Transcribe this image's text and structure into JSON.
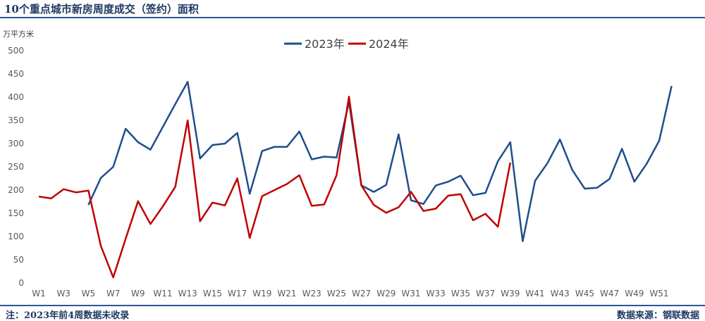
{
  "title": "10个重点城市新房周度成交（签约）面积",
  "footer": {
    "note": "注：2023年前4周数据未收录",
    "source": "数据来源：钢联数据"
  },
  "colors": {
    "series_2023": "#1f4e8c",
    "series_2024": "#c00000",
    "rule": "#2f5597"
  },
  "chart_data": {
    "type": "line",
    "title": "10个重点城市新房周度成交（签约）面积",
    "ylabel": "万平方米",
    "xlabel": "",
    "ylim": [
      0,
      500
    ],
    "yticks": [
      0,
      50,
      100,
      150,
      200,
      250,
      300,
      350,
      400,
      450,
      500
    ],
    "grid": false,
    "legend_position": "top-center",
    "x_tick_labels": [
      "W1",
      "W3",
      "W5",
      "W7",
      "W9",
      "W11",
      "W13",
      "W15",
      "W17",
      "W19",
      "W21",
      "W23",
      "W25",
      "W27",
      "W29",
      "W31",
      "W33",
      "W35",
      "W37",
      "W39",
      "W41",
      "W43",
      "W45",
      "W47",
      "W49",
      "W51"
    ],
    "x_range": [
      1,
      52
    ],
    "series": [
      {
        "name": "2023年",
        "x": [
          5,
          6,
          7,
          8,
          9,
          10,
          11,
          12,
          13,
          14,
          15,
          16,
          17,
          18,
          19,
          20,
          21,
          22,
          23,
          24,
          25,
          26,
          27,
          28,
          29,
          30,
          31,
          32,
          33,
          34,
          35,
          36,
          37,
          38,
          39,
          40,
          41,
          42,
          43,
          44,
          45,
          46,
          47,
          48,
          49,
          50,
          51,
          52
        ],
        "values": [
          168,
          226,
          250,
          332,
          303,
          287,
          336,
          385,
          433,
          268,
          297,
          300,
          323,
          192,
          284,
          293,
          293,
          326,
          266,
          272,
          270,
          390,
          210,
          196,
          211,
          320,
          178,
          170,
          210,
          218,
          231,
          189,
          194,
          262,
          303,
          90,
          220,
          258,
          309,
          243,
          203,
          205,
          224,
          289,
          218,
          257,
          306,
          424
        ]
      },
      {
        "name": "2024年",
        "x": [
          1,
          2,
          3,
          4,
          5,
          6,
          7,
          8,
          9,
          10,
          11,
          12,
          13,
          14,
          15,
          16,
          17,
          18,
          19,
          20,
          21,
          22,
          23,
          24,
          25,
          26,
          27,
          28,
          29,
          30,
          31,
          32,
          33,
          34,
          35,
          36,
          37,
          38,
          39
        ],
        "values": [
          186,
          182,
          202,
          195,
          199,
          80,
          12,
          95,
          176,
          127,
          165,
          207,
          350,
          133,
          173,
          167,
          225,
          97,
          187,
          200,
          213,
          232,
          166,
          169,
          232,
          401,
          210,
          168,
          151,
          163,
          196,
          155,
          160,
          188,
          191,
          135,
          149,
          121,
          259
        ]
      }
    ]
  }
}
